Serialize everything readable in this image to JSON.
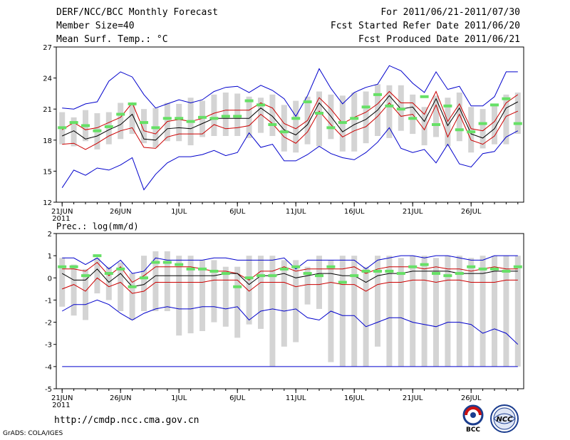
{
  "header": {
    "title": "DERF/NCC/BCC Monthly Forecast",
    "member_size": "Member Size=40",
    "variable": "Mean Surf. Temp.: °C",
    "forecast_period": "For 2011/06/21-2011/07/30",
    "started_refer": "Fcst Started Refer Date 2011/06/20",
    "produced": "Fcst Produced Date 2011/06/21"
  },
  "precip_title": "Prec.: log(mm/d)",
  "footer": {
    "url": "http://cmdp.ncc.cma.gov.cn",
    "grads": "GrADS: COLA/IGES"
  },
  "logos": [
    {
      "text": "BCC",
      "color": "#1a3c8e"
    },
    {
      "text": "NCC",
      "color": "#1a3c8e"
    }
  ],
  "x_ticks": [
    {
      "day": 1,
      "label": "21JUN",
      "sub": "2011"
    },
    {
      "day": 6,
      "label": "26JUN",
      "sub": ""
    },
    {
      "day": 11,
      "label": "1JUL",
      "sub": ""
    },
    {
      "day": 16,
      "label": "6JUL",
      "sub": ""
    },
    {
      "day": 21,
      "label": "11JUL",
      "sub": ""
    },
    {
      "day": 26,
      "label": "16JUL",
      "sub": ""
    },
    {
      "day": 31,
      "label": "21JUL",
      "sub": ""
    },
    {
      "day": 36,
      "label": "26JUL",
      "sub": ""
    }
  ],
  "chart_data": [
    {
      "type": "line",
      "title": "Mean Surf. Temp.: °C",
      "ylabel": "°C",
      "ylim": [
        12,
        27
      ],
      "yticks": [
        12,
        15,
        18,
        21,
        24,
        27
      ],
      "xlim": [
        0.5,
        40.5
      ],
      "days": [
        1,
        2,
        3,
        4,
        5,
        6,
        7,
        8,
        9,
        10,
        11,
        12,
        13,
        14,
        15,
        16,
        17,
        18,
        19,
        20,
        21,
        22,
        23,
        24,
        25,
        26,
        27,
        28,
        29,
        30,
        31,
        32,
        33,
        34,
        35,
        36,
        37,
        38,
        39,
        40
      ],
      "colors": {
        "ensemble_max_min": "#0000cc",
        "percentile_band": "#cc0000",
        "mean": "#000000",
        "box": "#d4d4d4",
        "observed": "#66e066"
      },
      "series": [
        {
          "name": "max",
          "values": [
            21.1,
            21.0,
            21.5,
            21.7,
            23.7,
            24.6,
            24.1,
            22.4,
            21.1,
            21.5,
            21.9,
            21.6,
            21.9,
            22.7,
            23.1,
            23.2,
            22.6,
            23.3,
            22.8,
            22.0,
            20.3,
            22.3,
            24.9,
            23.0,
            21.5,
            22.6,
            23.1,
            23.4,
            25.2,
            24.7,
            23.5,
            22.6,
            24.6,
            22.9,
            23.2,
            21.3,
            21.3,
            22.2,
            24.6,
            24.6
          ]
        },
        {
          "name": "p75",
          "values": [
            19.0,
            19.7,
            19.0,
            19.2,
            19.7,
            20.2,
            21.6,
            18.9,
            18.6,
            19.8,
            20.0,
            19.8,
            20.1,
            20.6,
            20.9,
            20.9,
            20.9,
            21.6,
            21.1,
            19.6,
            19.1,
            19.9,
            22.1,
            21.0,
            19.6,
            20.2,
            20.7,
            21.5,
            22.7,
            21.6,
            21.6,
            20.5,
            22.7,
            19.8,
            21.5,
            19.1,
            18.9,
            19.8,
            21.6,
            22.4
          ]
        },
        {
          "name": "mean",
          "values": [
            18.4,
            18.9,
            18.1,
            18.4,
            19.0,
            19.5,
            20.5,
            18.1,
            18.0,
            19.1,
            19.2,
            19.1,
            19.6,
            20.1,
            20.1,
            20.1,
            20.1,
            21.1,
            20.3,
            19.0,
            18.5,
            19.5,
            21.6,
            20.3,
            18.8,
            19.5,
            20.0,
            20.9,
            22.3,
            21.0,
            21.2,
            19.8,
            22.0,
            19.4,
            21.1,
            18.6,
            18.2,
            19.1,
            21.1,
            21.7
          ]
        },
        {
          "name": "p25",
          "values": [
            17.6,
            17.7,
            17.1,
            17.7,
            18.4,
            18.9,
            19.2,
            17.3,
            17.2,
            18.3,
            18.6,
            18.6,
            18.6,
            19.5,
            19.1,
            19.2,
            19.4,
            20.5,
            19.6,
            18.3,
            17.7,
            18.8,
            20.8,
            19.5,
            18.3,
            18.9,
            19.3,
            20.3,
            21.6,
            20.3,
            20.5,
            19.0,
            21.4,
            18.3,
            20.5,
            18.0,
            17.6,
            18.4,
            20.3,
            20.8
          ]
        },
        {
          "name": "min",
          "values": [
            13.4,
            15.1,
            14.6,
            15.3,
            15.1,
            15.6,
            16.3,
            13.2,
            14.7,
            15.8,
            16.4,
            16.4,
            16.6,
            17.0,
            16.5,
            16.8,
            18.7,
            17.3,
            17.6,
            16.0,
            16.0,
            16.6,
            17.4,
            16.7,
            16.3,
            16.1,
            16.8,
            17.8,
            19.2,
            17.2,
            16.8,
            17.1,
            15.8,
            17.6,
            15.7,
            15.4,
            16.7,
            16.9,
            18.3,
            18.9
          ]
        },
        {
          "name": "box_top",
          "values": [
            20.7,
            20.2,
            20.9,
            20.6,
            20.7,
            21.6,
            21.5,
            21.0,
            21.1,
            21.6,
            21.5,
            22.1,
            21.8,
            22.4,
            22.6,
            22.5,
            22.2,
            22.1,
            22.4,
            21.4,
            21.8,
            22.2,
            22.7,
            22.4,
            22.3,
            22.6,
            22.7,
            23.4,
            23.3,
            23.3,
            22.4,
            21.2,
            22.3,
            22.1,
            22.6,
            21.2,
            21.0,
            21.3,
            22.4,
            22.6
          ]
        },
        {
          "name": "box_bottom",
          "values": [
            17.6,
            17.4,
            17.9,
            17.1,
            17.6,
            18.1,
            18.6,
            17.7,
            17.3,
            17.9,
            17.9,
            17.5,
            18.3,
            18.4,
            18.4,
            18.4,
            18.2,
            18.7,
            18.4,
            16.9,
            16.8,
            17.6,
            17.4,
            18.1,
            16.9,
            16.9,
            17.7,
            18.4,
            18.2,
            18.9,
            18.6,
            17.5,
            18.3,
            17.4,
            17.9,
            16.8,
            17.2,
            17.6,
            17.6,
            18.6
          ]
        },
        {
          "name": "observed",
          "values": [
            19.2,
            19.7,
            19.4,
            18.9,
            19.3,
            20.5,
            21.5,
            19.7,
            19.2,
            20.1,
            20.1,
            19.8,
            20.2,
            20.1,
            20.3,
            20.3,
            21.8,
            21.4,
            19.5,
            18.8,
            20.1,
            21.7,
            20.6,
            19.2,
            19.7,
            20.1,
            21.2,
            22.4,
            21.3,
            21.0,
            20.1,
            22.2,
            19.5,
            21.3,
            19.0,
            18.8,
            19.6,
            21.4,
            22.0,
            19.6
          ]
        }
      ]
    },
    {
      "type": "line",
      "title": "Prec.: log(mm/d)",
      "ylabel": "log(mm/d)",
      "ylim": [
        -5,
        2
      ],
      "yticks": [
        -5,
        -4,
        -3,
        -2,
        -1,
        0,
        1,
        2
      ],
      "xlim": [
        0.5,
        40.5
      ],
      "days": [
        1,
        2,
        3,
        4,
        5,
        6,
        7,
        8,
        9,
        10,
        11,
        12,
        13,
        14,
        15,
        16,
        17,
        18,
        19,
        20,
        21,
        22,
        23,
        24,
        25,
        26,
        27,
        28,
        29,
        30,
        31,
        32,
        33,
        34,
        35,
        36,
        37,
        38,
        39,
        40
      ],
      "series": [
        {
          "name": "max",
          "values": [
            0.9,
            0.9,
            0.6,
            0.9,
            0.4,
            0.8,
            0.2,
            0.3,
            0.9,
            0.8,
            0.8,
            0.8,
            0.8,
            0.9,
            0.9,
            0.8,
            0.8,
            0.8,
            0.8,
            0.9,
            0.4,
            0.8,
            0.8,
            0.8,
            0.8,
            0.8,
            0.4,
            0.8,
            0.9,
            1.0,
            1.0,
            0.9,
            1.0,
            1.0,
            0.9,
            0.8,
            0.8,
            1.0,
            1.0,
            1.0
          ]
        },
        {
          "name": "p75",
          "values": [
            0.4,
            0.4,
            0.3,
            0.7,
            0.1,
            0.5,
            -0.2,
            0.1,
            0.5,
            0.5,
            0.5,
            0.5,
            0.4,
            0.3,
            0.3,
            0.2,
            -0.1,
            0.3,
            0.3,
            0.5,
            0.3,
            0.4,
            0.4,
            0.4,
            0.4,
            0.5,
            0.2,
            0.4,
            0.5,
            0.5,
            0.5,
            0.4,
            0.5,
            0.4,
            0.4,
            0.3,
            0.4,
            0.5,
            0.4,
            0.4
          ]
        },
        {
          "name": "mean",
          "values": [
            0.2,
            -0.1,
            -0.1,
            0.4,
            -0.2,
            0.2,
            -0.4,
            -0.3,
            0.1,
            0.1,
            0.1,
            0.1,
            0.1,
            0.1,
            0.2,
            0.2,
            -0.3,
            0.1,
            0.1,
            0.2,
            0.0,
            0.1,
            0.2,
            0.2,
            0.1,
            0.1,
            -0.2,
            0.1,
            0.2,
            0.2,
            0.3,
            0.3,
            0.3,
            0.3,
            0.2,
            0.2,
            0.2,
            0.3,
            0.3,
            0.3
          ]
        },
        {
          "name": "p25",
          "values": [
            -0.5,
            -0.3,
            -0.6,
            0.0,
            -0.4,
            -0.2,
            -0.7,
            -0.6,
            -0.2,
            -0.2,
            -0.2,
            -0.2,
            -0.2,
            -0.1,
            -0.1,
            -0.1,
            -0.6,
            -0.2,
            -0.2,
            -0.2,
            -0.4,
            -0.3,
            -0.3,
            -0.2,
            -0.3,
            -0.3,
            -0.6,
            -0.3,
            -0.2,
            -0.2,
            -0.1,
            -0.1,
            -0.2,
            -0.1,
            -0.1,
            -0.2,
            -0.2,
            -0.2,
            -0.1,
            -0.1
          ]
        },
        {
          "name": "min",
          "values": [
            -1.5,
            -1.2,
            -1.2,
            -1.0,
            -1.2,
            -1.6,
            -1.9,
            -1.6,
            -1.4,
            -1.3,
            -1.4,
            -1.4,
            -1.3,
            -1.3,
            -1.4,
            -1.3,
            -1.9,
            -1.5,
            -1.4,
            -1.5,
            -1.4,
            -1.8,
            -1.9,
            -1.5,
            -1.7,
            -1.7,
            -2.2,
            -2.0,
            -1.8,
            -1.8,
            -2.0,
            -2.1,
            -2.2,
            -2.0,
            -2.0,
            -2.1,
            -2.5,
            -2.3,
            -2.5,
            -3.0
          ]
        },
        {
          "name": "box_top",
          "values": [
            0.9,
            0.6,
            0.4,
            0.9,
            0.5,
            0.7,
            0.2,
            1.0,
            1.2,
            1.2,
            1.0,
            1.0,
            0.8,
            0.8,
            0.5,
            0.5,
            1.0,
            1.0,
            1.0,
            0.8,
            0.8,
            0.5,
            1.0,
            0.8,
            1.0,
            1.0,
            0.5,
            1.0,
            1.0,
            0.9,
            1.0,
            1.0,
            0.9,
            1.0,
            1.0,
            0.9,
            1.0,
            1.0,
            1.0,
            1.0
          ]
        },
        {
          "name": "box_bottom",
          "values": [
            -1.3,
            -1.7,
            -1.9,
            -0.7,
            -1.0,
            -1.5,
            -1.9,
            -1.5,
            -1.5,
            -1.5,
            -2.6,
            -2.5,
            -2.4,
            -2.0,
            -2.2,
            -2.7,
            -2.1,
            -2.3,
            -4.0,
            -3.1,
            -2.9,
            -1.2,
            -1.4,
            -3.8,
            -4.0,
            -4.0,
            -4.0,
            -3.1,
            -4.0,
            -4.0,
            -4.0,
            -4.0,
            -4.0,
            -4.0,
            -4.0,
            -4.0,
            -4.0,
            -4.0,
            -4.0,
            -4.0
          ]
        },
        {
          "name": "observed",
          "values": [
            0.5,
            0.5,
            0.1,
            1.0,
            0.2,
            0.4,
            -0.4,
            0.0,
            0.7,
            0.7,
            0.6,
            0.4,
            0.4,
            0.3,
            0.2,
            -0.4,
            0.0,
            0.1,
            0.1,
            0.4,
            0.5,
            0.2,
            0.1,
            0.5,
            -0.2,
            0.1,
            0.3,
            0.3,
            0.3,
            0.2,
            0.5,
            0.6,
            0.2,
            0.1,
            0.2,
            0.5,
            0.4,
            0.4,
            0.3,
            0.5
          ]
        },
        {
          "name": "floor",
          "values": [
            -4.0,
            -4.0,
            -4.0,
            -4.0,
            -4.0,
            -4.0,
            -4.0,
            -4.0,
            -4.0,
            -4.0,
            -4.0,
            -4.0,
            -4.0,
            -4.0,
            -4.0,
            -4.0,
            -4.0,
            -4.0,
            -4.0,
            -4.0,
            -4.0,
            -4.0,
            -4.0,
            -4.0,
            -4.0,
            -4.0,
            -4.0,
            -4.0,
            -4.0,
            -4.0,
            -4.0,
            -4.0,
            -4.0,
            -4.0,
            -4.0,
            -4.0,
            -4.0,
            -4.0,
            -4.0,
            -4.0
          ]
        }
      ]
    }
  ]
}
